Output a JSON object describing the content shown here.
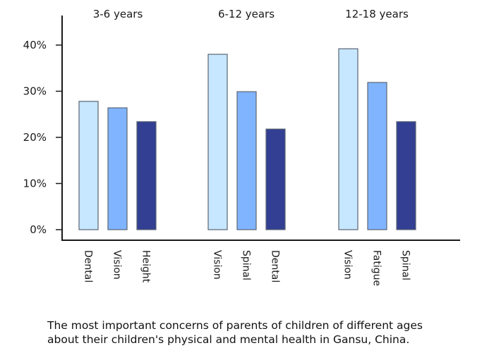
{
  "chart_data": {
    "type": "bar",
    "title": "",
    "caption": "The most important concerns of parents of children of different ages about their children's physical and mental health in Gansu, China.",
    "caption_lines": [
      "The most important concerns of parents of children of different ages",
      "about their children's physical and mental health in Gansu, China."
    ],
    "xlabel": "",
    "ylabel": "",
    "ylim": [
      0,
      45
    ],
    "yticks": [
      0,
      10,
      20,
      30,
      40
    ],
    "ytick_labels": [
      "0%",
      "10%",
      "20%",
      "30%",
      "40%"
    ],
    "grid": false,
    "legend": "none",
    "colors": [
      "#c6e7ff",
      "#80b4ff",
      "#323f92"
    ],
    "groups": [
      {
        "label": "3-6 years",
        "bars": [
          {
            "category": "Dental",
            "value": 27.8
          },
          {
            "category": "Vision",
            "value": 26.4
          },
          {
            "category": "Height",
            "value": 23.4
          }
        ]
      },
      {
        "label": "6-12 years",
        "bars": [
          {
            "category": "Vision",
            "value": 38.0
          },
          {
            "category": "Spinal",
            "value": 29.9
          },
          {
            "category": "Dental",
            "value": 21.8
          }
        ]
      },
      {
        "label": "12-18 years",
        "bars": [
          {
            "category": "Vision",
            "value": 39.2
          },
          {
            "category": "Fatigue",
            "value": 31.9
          },
          {
            "category": "Spinal",
            "value": 23.4
          }
        ]
      }
    ]
  }
}
